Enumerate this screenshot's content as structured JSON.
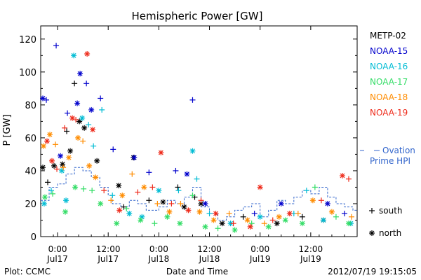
{
  "chart_data": {
    "type": "scatter",
    "title": "Hemispheric Power [GW]",
    "ylabel": "P [GW]",
    "xlabel": "Date and Time",
    "ylim": [
      0,
      128
    ],
    "xlim": [
      "2012-07-16T20:00",
      "2012-07-19T23:00"
    ],
    "y_ticks": [
      0,
      20,
      40,
      60,
      80,
      100,
      120
    ],
    "x_ticks": [
      {
        "t": "2012-07-17T00:00",
        "label": "0:00",
        "date": "Jul17"
      },
      {
        "t": "2012-07-17T12:00",
        "label": "12:00",
        "date": "Jul17"
      },
      {
        "t": "2012-07-18T00:00",
        "label": "0:00",
        "date": "Jul18"
      },
      {
        "t": "2012-07-18T12:00",
        "label": "12:00",
        "date": "Jul18"
      },
      {
        "t": "2012-07-19T00:00",
        "label": "0:00",
        "date": "Jul19"
      },
      {
        "t": "2012-07-19T12:00",
        "label": "12:00",
        "date": "Jul19"
      }
    ],
    "legend_position": "right",
    "marker_legend": [
      {
        "symbol": "+",
        "label": "south"
      },
      {
        "symbol": "*",
        "label": "north"
      }
    ],
    "series": [
      {
        "name": "METP-02",
        "color": "#000000",
        "points": [
          [
            "2012-07-16T20:30",
            42,
            "*"
          ],
          [
            "2012-07-16T21:40",
            33,
            "+"
          ],
          [
            "2012-07-16T23:10",
            43,
            "*"
          ],
          [
            "2012-07-17T01:10",
            44,
            "*"
          ],
          [
            "2012-07-17T02:10",
            64,
            "+"
          ],
          [
            "2012-07-17T03:00",
            52,
            "*"
          ],
          [
            "2012-07-17T04:00",
            93,
            "+"
          ],
          [
            "2012-07-17T05:10",
            70,
            "*"
          ],
          [
            "2012-07-17T06:20",
            66,
            "*"
          ],
          [
            "2012-07-17T09:20",
            46,
            "*"
          ],
          [
            "2012-07-17T14:30",
            31,
            "*"
          ],
          [
            "2012-07-17T15:40",
            18,
            "+"
          ],
          [
            "2012-07-17T18:00",
            48,
            "*"
          ],
          [
            "2012-07-17T21:40",
            22,
            "+"
          ],
          [
            "2012-07-18T01:00",
            21,
            "*"
          ],
          [
            "2012-07-18T04:30",
            30,
            "+"
          ],
          [
            "2012-07-18T06:00",
            18,
            "*"
          ],
          [
            "2012-07-18T08:30",
            24,
            "+"
          ],
          [
            "2012-07-18T10:00",
            20,
            "*"
          ],
          [
            "2012-07-18T15:00",
            8,
            "*"
          ],
          [
            "2012-07-18T20:00",
            12,
            "+"
          ],
          [
            "2012-07-19T04:00",
            8,
            "*"
          ],
          [
            "2012-07-19T10:00",
            12,
            "+"
          ],
          [
            "2012-07-19T15:00",
            10,
            "*"
          ]
        ]
      },
      {
        "name": "NOAA-15",
        "color": "#0000cc",
        "points": [
          [
            "2012-07-16T20:30",
            84,
            "*"
          ],
          [
            "2012-07-16T21:20",
            83,
            "+"
          ],
          [
            "2012-07-16T23:40",
            116,
            "+"
          ],
          [
            "2012-07-17T00:40",
            49,
            "*"
          ],
          [
            "2012-07-17T02:20",
            75,
            "+"
          ],
          [
            "2012-07-17T04:40",
            81,
            "*"
          ],
          [
            "2012-07-17T05:20",
            99,
            "*"
          ],
          [
            "2012-07-17T06:50",
            93,
            "+"
          ],
          [
            "2012-07-17T08:00",
            77,
            "*"
          ],
          [
            "2012-07-17T10:10",
            84,
            "+"
          ],
          [
            "2012-07-17T13:10",
            53,
            "+"
          ],
          [
            "2012-07-17T18:10",
            48,
            "*"
          ],
          [
            "2012-07-17T21:40",
            39,
            "+"
          ],
          [
            "2012-07-18T04:00",
            40,
            "+"
          ],
          [
            "2012-07-18T06:40",
            38,
            "*"
          ],
          [
            "2012-07-18T08:00",
            83,
            "+"
          ],
          [
            "2012-07-18T11:00",
            20,
            "*"
          ],
          [
            "2012-07-18T22:40",
            14,
            "+"
          ],
          [
            "2012-07-19T05:00",
            20,
            "*"
          ],
          [
            "2012-07-19T16:00",
            20,
            "*"
          ],
          [
            "2012-07-19T20:00",
            14,
            "+"
          ]
        ]
      },
      {
        "name": "NOAA-16",
        "color": "#00bcd4",
        "points": [
          [
            "2012-07-16T20:50",
            20,
            "*"
          ],
          [
            "2012-07-16T22:30",
            28,
            "+"
          ],
          [
            "2012-07-17T01:00",
            40,
            "*"
          ],
          [
            "2012-07-17T02:00",
            22,
            "*"
          ],
          [
            "2012-07-17T03:50",
            110,
            "*"
          ],
          [
            "2012-07-17T05:50",
            72,
            "*"
          ],
          [
            "2012-07-17T07:20",
            68,
            "+"
          ],
          [
            "2012-07-17T08:30",
            55,
            "+"
          ],
          [
            "2012-07-17T10:30",
            77,
            "+"
          ],
          [
            "2012-07-17T13:00",
            25,
            "+"
          ],
          [
            "2012-07-17T17:00",
            14,
            "*"
          ],
          [
            "2012-07-17T20:00",
            12,
            "*"
          ],
          [
            "2012-07-18T00:00",
            28,
            "*"
          ],
          [
            "2012-07-18T04:40",
            28,
            "+"
          ],
          [
            "2012-07-18T08:00",
            52,
            "*"
          ],
          [
            "2012-07-18T09:00",
            35,
            "+"
          ],
          [
            "2012-07-18T12:00",
            14,
            "+"
          ],
          [
            "2012-07-18T17:00",
            8,
            "*"
          ],
          [
            "2012-07-19T00:00",
            12,
            "*"
          ],
          [
            "2012-07-19T08:00",
            14,
            "+"
          ],
          [
            "2012-07-19T11:00",
            28,
            "+"
          ],
          [
            "2012-07-19T15:00",
            10,
            "*"
          ],
          [
            "2012-07-19T21:30",
            8,
            "*"
          ]
        ]
      },
      {
        "name": "NOAA-17",
        "color": "#33dd66",
        "points": [
          [
            "2012-07-16T21:00",
            24,
            "*"
          ],
          [
            "2012-07-16T22:50",
            26,
            "+"
          ],
          [
            "2012-07-17T01:50",
            15,
            "*"
          ],
          [
            "2012-07-17T04:10",
            30,
            "*"
          ],
          [
            "2012-07-17T06:10",
            29,
            "+"
          ],
          [
            "2012-07-17T08:10",
            28,
            "+"
          ],
          [
            "2012-07-17T10:10",
            20,
            "*"
          ],
          [
            "2012-07-17T14:00",
            8,
            "*"
          ],
          [
            "2012-07-17T16:20",
            17,
            "+"
          ],
          [
            "2012-07-17T19:40",
            10,
            "*"
          ],
          [
            "2012-07-17T23:00",
            8,
            "+"
          ],
          [
            "2012-07-18T02:00",
            12,
            "*"
          ],
          [
            "2012-07-18T05:00",
            8,
            "*"
          ],
          [
            "2012-07-18T08:00",
            25,
            "+"
          ],
          [
            "2012-07-18T11:00",
            6,
            "*"
          ],
          [
            "2012-07-18T14:00",
            5,
            "+"
          ],
          [
            "2012-07-18T18:00",
            4,
            "*"
          ],
          [
            "2012-07-18T22:00",
            8,
            "+"
          ],
          [
            "2012-07-19T02:00",
            6,
            "*"
          ],
          [
            "2012-07-19T06:00",
            10,
            "*"
          ],
          [
            "2012-07-19T10:00",
            8,
            "*"
          ],
          [
            "2012-07-19T13:00",
            30,
            "+"
          ],
          [
            "2012-07-19T18:00",
            12,
            "+"
          ],
          [
            "2012-07-19T21:00",
            8,
            "*"
          ]
        ]
      },
      {
        "name": "NOAA-18",
        "color": "#ff8c00",
        "points": [
          [
            "2012-07-16T20:40",
            55,
            "*"
          ],
          [
            "2012-07-16T22:10",
            62,
            "*"
          ],
          [
            "2012-07-16T23:30",
            56,
            "+"
          ],
          [
            "2012-07-17T01:20",
            42,
            "+"
          ],
          [
            "2012-07-17T02:40",
            48,
            "*"
          ],
          [
            "2012-07-17T04:50",
            60,
            "*"
          ],
          [
            "2012-07-17T06:00",
            58,
            "+"
          ],
          [
            "2012-07-17T07:30",
            43,
            "*"
          ],
          [
            "2012-07-17T09:00",
            36,
            "*"
          ],
          [
            "2012-07-17T12:40",
            22,
            "+"
          ],
          [
            "2012-07-17T15:20",
            25,
            "*"
          ],
          [
            "2012-07-17T17:40",
            38,
            "+"
          ],
          [
            "2012-07-17T20:30",
            30,
            "*"
          ],
          [
            "2012-07-17T23:40",
            20,
            "+"
          ],
          [
            "2012-07-18T02:30",
            15,
            "*"
          ],
          [
            "2012-07-18T05:10",
            20,
            "+"
          ],
          [
            "2012-07-18T09:40",
            15,
            "*"
          ],
          [
            "2012-07-18T13:00",
            10,
            "*"
          ],
          [
            "2012-07-18T16:40",
            14,
            "+"
          ],
          [
            "2012-07-18T21:00",
            10,
            "*"
          ],
          [
            "2012-07-19T01:00",
            8,
            "+"
          ],
          [
            "2012-07-19T04:30",
            12,
            "*"
          ],
          [
            "2012-07-19T09:00",
            14,
            "+"
          ],
          [
            "2012-07-19T12:30",
            22,
            "*"
          ],
          [
            "2012-07-19T17:00",
            15,
            "*"
          ],
          [
            "2012-07-19T21:40",
            12,
            "+"
          ]
        ]
      },
      {
        "name": "NOAA-19",
        "color": "#ee2a1a",
        "points": [
          [
            "2012-07-16T21:30",
            58,
            "*"
          ],
          [
            "2012-07-16T22:40",
            46,
            "*"
          ],
          [
            "2012-07-16T23:50",
            41,
            "+"
          ],
          [
            "2012-07-17T01:40",
            66,
            "+"
          ],
          [
            "2012-07-17T03:30",
            72,
            "*"
          ],
          [
            "2012-07-17T04:20",
            71,
            "+"
          ],
          [
            "2012-07-17T07:00",
            111,
            "*"
          ],
          [
            "2012-07-17T08:20",
            65,
            "*"
          ],
          [
            "2012-07-17T11:00",
            28,
            "+"
          ],
          [
            "2012-07-17T14:40",
            16,
            "*"
          ],
          [
            "2012-07-17T19:00",
            27,
            "+"
          ],
          [
            "2012-07-17T22:30",
            30,
            "+"
          ],
          [
            "2012-07-18T00:30",
            51,
            "*"
          ],
          [
            "2012-07-18T03:00",
            20,
            "+"
          ],
          [
            "2012-07-18T07:00",
            16,
            "*"
          ],
          [
            "2012-07-18T10:00",
            22,
            "+"
          ],
          [
            "2012-07-18T13:30",
            14,
            "*"
          ],
          [
            "2012-07-18T17:40",
            8,
            "+"
          ],
          [
            "2012-07-18T21:40",
            6,
            "*"
          ],
          [
            "2012-07-19T00:00",
            30,
            "*"
          ],
          [
            "2012-07-19T03:00",
            10,
            "+"
          ],
          [
            "2012-07-19T07:00",
            14,
            "*"
          ],
          [
            "2012-07-19T14:30",
            22,
            "+"
          ],
          [
            "2012-07-19T19:30",
            37,
            "*"
          ],
          [
            "2012-07-19T21:00",
            35,
            "+"
          ]
        ]
      }
    ],
    "ovation": {
      "label_line1": "Ovation",
      "label_line2": "Prime HPI",
      "color": "#3366cc",
      "steps": [
        [
          "2012-07-16T20:00",
          22
        ],
        [
          "2012-07-16T22:00",
          30
        ],
        [
          "2012-07-17T00:00",
          32
        ],
        [
          "2012-07-17T02:00",
          38
        ],
        [
          "2012-07-17T04:00",
          42
        ],
        [
          "2012-07-17T06:00",
          40
        ],
        [
          "2012-07-17T08:00",
          36
        ],
        [
          "2012-07-17T10:00",
          30
        ],
        [
          "2012-07-17T12:00",
          25
        ],
        [
          "2012-07-17T13:00",
          20
        ],
        [
          "2012-07-17T15:00",
          18
        ],
        [
          "2012-07-17T17:00",
          22
        ],
        [
          "2012-07-17T19:00",
          20
        ],
        [
          "2012-07-17T21:00",
          16
        ],
        [
          "2012-07-18T00:00",
          18
        ],
        [
          "2012-07-18T02:00",
          22
        ],
        [
          "2012-07-18T04:00",
          20
        ],
        [
          "2012-07-18T06:00",
          24
        ],
        [
          "2012-07-18T08:00",
          30
        ],
        [
          "2012-07-18T10:00",
          18
        ],
        [
          "2012-07-18T12:00",
          14
        ],
        [
          "2012-07-18T14:00",
          10
        ],
        [
          "2012-07-18T16:00",
          12
        ],
        [
          "2012-07-18T18:00",
          16
        ],
        [
          "2012-07-18T20:00",
          18
        ],
        [
          "2012-07-18T22:00",
          20
        ],
        [
          "2012-07-19T00:00",
          12
        ],
        [
          "2012-07-19T02:00",
          16
        ],
        [
          "2012-07-19T04:00",
          22
        ],
        [
          "2012-07-19T06:00",
          20
        ],
        [
          "2012-07-19T08:00",
          24
        ],
        [
          "2012-07-19T10:00",
          28
        ],
        [
          "2012-07-19T12:00",
          26
        ],
        [
          "2012-07-19T14:00",
          30
        ],
        [
          "2012-07-19T16:00",
          24
        ],
        [
          "2012-07-19T18:00",
          20
        ],
        [
          "2012-07-19T20:00",
          18
        ],
        [
          "2012-07-19T22:00",
          16
        ],
        [
          "2012-07-19T23:00",
          16
        ]
      ]
    },
    "footer_left": "Plot: CCMC",
    "footer_right": "2012/07/19 19:15:05"
  }
}
